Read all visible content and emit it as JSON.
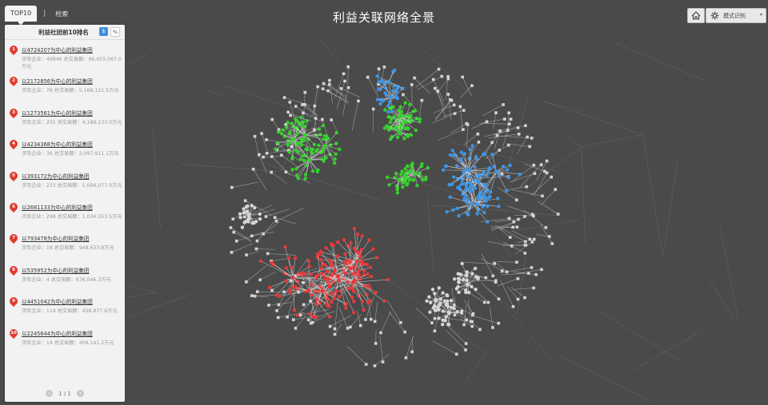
{
  "page_title": "利益关联网络全景",
  "tabs": {
    "top10_label": "TOP10",
    "separator": "|",
    "search_label": "检索"
  },
  "panel": {
    "title": "利益社团前10排名",
    "unit_dollar": "$",
    "unit_percent": "%",
    "items": [
      {
        "rank": "1",
        "title": "以4724207为中心的利益集团",
        "detail": "涉及企业：49846 总交易额：96,655,067.0万元"
      },
      {
        "rank": "2",
        "title": "以2172856为中心的利益集团",
        "detail": "涉及企业：78 总交易额：5,168,121.5万元"
      },
      {
        "rank": "3",
        "title": "以1273561为中心的利益集团",
        "detail": "涉及企业：255 总交易额：4,189,133.0万元"
      },
      {
        "rank": "4",
        "title": "以4234368为中心的利益集团",
        "detail": "涉及企业：36 总交易额：2,097,911.1万元"
      },
      {
        "rank": "5",
        "title": "以393172为中心的利益集团",
        "detail": "涉及企业：233 总交易额：1,094,077.0万元"
      },
      {
        "rank": "6",
        "title": "以2681133为中心的利益集团",
        "detail": "涉及企业：298 总交易额：1,034,553.5万元"
      },
      {
        "rank": "7",
        "title": "以793478为中心的利益集团",
        "detail": "涉及企业：18 总交易额：948,633.8万元"
      },
      {
        "rank": "8",
        "title": "以535952为中心的利益集团",
        "detail": "涉及企业：4 总交易额：676,046.3万元"
      },
      {
        "rank": "9",
        "title": "以4451042为中心的利益集团",
        "detail": "涉及企业：114 总交易额：458,877.6万元"
      },
      {
        "rank": "10",
        "title": "以2245644为中心的利益集团",
        "detail": "涉及企业：14 总交易额：409,141.2万元"
      }
    ],
    "pager": {
      "text": "1 / 1",
      "prev_icon": "chevron-left-icon",
      "next_icon": "chevron-right-icon"
    }
  },
  "toolbar": {
    "home_icon": "home-icon",
    "mode_icon": "gear-icon",
    "mode_label": "模式识别",
    "mode_caret": "▾"
  },
  "colors": {
    "background": "#4a4a4a",
    "cluster_red": "#e8393a",
    "cluster_green": "#35d12c",
    "cluster_blue": "#3d95e6",
    "node_gray": "#d4d4d4",
    "edge": "#9a9a9a",
    "accent": "#3f8fd8"
  }
}
